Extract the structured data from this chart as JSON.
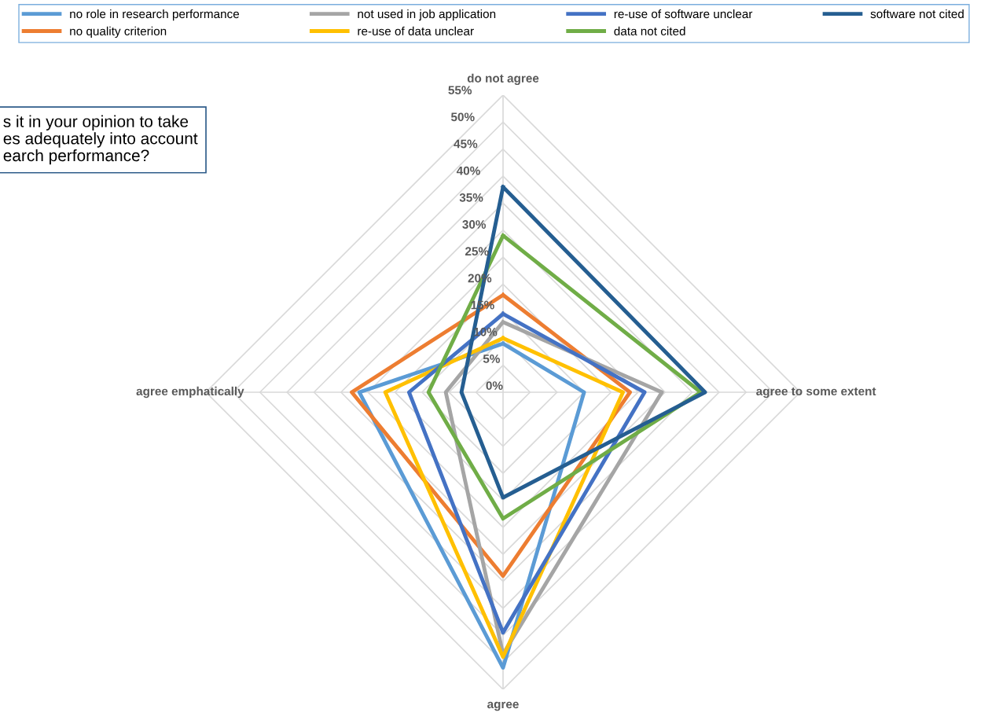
{
  "chart_data": {
    "type": "radar",
    "categories": [
      "do not agree",
      "agree to some extent",
      "agree",
      "agree emphatically"
    ],
    "series": [
      {
        "name": "no role in research performance",
        "color": "#5b9bd5",
        "values": [
          9,
          15,
          51,
          26.6
        ]
      },
      {
        "name": "no quality criterion",
        "color": "#ed7d31",
        "values": [
          18,
          23.5,
          34,
          28
        ]
      },
      {
        "name": "not used in job application",
        "color": "#a5a5a5",
        "values": [
          13,
          29.4,
          48.5,
          10.6
        ]
      },
      {
        "name": "re-use of data unclear",
        "color": "#ffc000",
        "values": [
          10,
          22.2,
          49,
          21.8
        ]
      },
      {
        "name": "re-use of software unclear",
        "color": "#4472c4",
        "values": [
          14.5,
          26.2,
          44.5,
          17.4
        ]
      },
      {
        "name": "data not cited",
        "color": "#70ad47",
        "values": [
          29,
          36.6,
          23.4,
          13.8
        ]
      },
      {
        "name": "software not cited",
        "color": "#255e91",
        "values": [
          38,
          37.4,
          19.5,
          7.7
        ]
      }
    ],
    "ylim": [
      0,
      55
    ],
    "yticks": [
      {
        "value": 0,
        "label": "0%"
      },
      {
        "value": 5,
        "label": "5%"
      },
      {
        "value": 10,
        "label": "10%"
      },
      {
        "value": 15,
        "label": "15%"
      },
      {
        "value": 20,
        "label": "20%"
      },
      {
        "value": 25,
        "label": "25%"
      },
      {
        "value": 30,
        "label": "30%"
      },
      {
        "value": 35,
        "label": "35%"
      },
      {
        "value": 40,
        "label": "40%"
      },
      {
        "value": 45,
        "label": "45%"
      },
      {
        "value": 50,
        "label": "50%"
      },
      {
        "value": 55,
        "label": "55%"
      }
    ],
    "grid": true,
    "legend": "top",
    "marker": "none",
    "annotations": [
      "s it in your opinion to take\nes adequately into account\nearch performance?"
    ]
  }
}
